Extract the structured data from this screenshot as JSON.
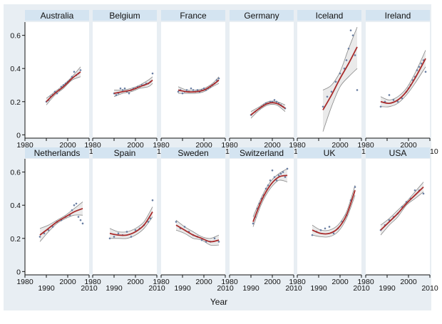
{
  "figure": {
    "xlabel": "Year",
    "colors": {
      "background": "#e8eef3",
      "plot_bg": "#ffffff",
      "strip_bg": "#d4e4f1",
      "fit_line": "#a82a2a",
      "ci_band": "#d9d9d9",
      "ci_line": "#8a8a8a",
      "points": "#6a7fa3",
      "axis": "#111111"
    }
  },
  "chart_data": [
    {
      "type": "scatter",
      "title": "Australia",
      "xlim": [
        1980,
        2010
      ],
      "ylim": [
        -0.02,
        0.68
      ],
      "xticks": [
        1980,
        1990,
        2000,
        2010
      ],
      "yticks": [
        0,
        0.2,
        0.4,
        0.6
      ],
      "points": {
        "x": [
          1990,
          1991,
          1992,
          1993,
          1994,
          1995,
          1996,
          1997,
          1998,
          1999,
          2000,
          2001,
          2002,
          2003,
          2004,
          2005,
          2006
        ],
        "y": [
          0.2,
          0.21,
          0.23,
          0.24,
          0.26,
          0.25,
          0.27,
          0.29,
          0.3,
          0.31,
          0.32,
          0.33,
          0.35,
          0.38,
          0.36,
          0.37,
          0.39
        ]
      },
      "fit": {
        "x": [
          1990,
          1994,
          1998,
          2002,
          2006
        ],
        "y": [
          0.2,
          0.25,
          0.29,
          0.34,
          0.38
        ]
      },
      "ci_upper": [
        0.22,
        0.26,
        0.3,
        0.35,
        0.41
      ],
      "ci_lower": [
        0.18,
        0.24,
        0.28,
        0.33,
        0.35
      ]
    },
    {
      "type": "scatter",
      "title": "Belgium",
      "xlim": [
        1980,
        2010
      ],
      "ylim": [
        -0.02,
        0.68
      ],
      "xticks": [
        1980,
        1990,
        2000,
        2010
      ],
      "yticks": [
        0,
        0.2,
        0.4,
        0.6
      ],
      "points": {
        "x": [
          1990,
          1991,
          1992,
          1993,
          1994,
          1995,
          1996,
          1997,
          1998,
          1999,
          2000,
          2001,
          2002,
          2003,
          2004,
          2005,
          2006,
          2007,
          2008
        ],
        "y": [
          0.25,
          0.24,
          0.25,
          0.28,
          0.27,
          0.28,
          0.26,
          0.25,
          0.27,
          0.28,
          0.28,
          0.29,
          0.29,
          0.3,
          0.3,
          0.31,
          0.31,
          0.32,
          0.37
        ]
      },
      "fit": {
        "x": [
          1990,
          1994,
          1998,
          2002,
          2006,
          2008
        ],
        "y": [
          0.25,
          0.26,
          0.27,
          0.29,
          0.31,
          0.33
        ]
      },
      "ci_upper": [
        0.27,
        0.27,
        0.28,
        0.3,
        0.33,
        0.35
      ],
      "ci_lower": [
        0.23,
        0.25,
        0.26,
        0.28,
        0.29,
        0.31
      ]
    },
    {
      "type": "scatter",
      "title": "France",
      "xlim": [
        1980,
        2010
      ],
      "ylim": [
        -0.02,
        0.68
      ],
      "xticks": [
        1980,
        1990,
        2000,
        2010
      ],
      "yticks": [
        0,
        0.2,
        0.4,
        0.6
      ],
      "points": {
        "x": [
          1988,
          1989,
          1990,
          1991,
          1992,
          1993,
          1994,
          1995,
          1996,
          1997,
          1998,
          1999,
          2000,
          2001,
          2002,
          2003,
          2004,
          2005,
          2006,
          2007
        ],
        "y": [
          0.26,
          0.27,
          0.25,
          0.26,
          0.27,
          0.26,
          0.28,
          0.27,
          0.26,
          0.27,
          0.26,
          0.27,
          0.28,
          0.27,
          0.28,
          0.29,
          0.3,
          0.31,
          0.33,
          0.34
        ]
      },
      "fit": {
        "x": [
          1988,
          1992,
          1996,
          2000,
          2004,
          2007
        ],
        "y": [
          0.27,
          0.26,
          0.26,
          0.27,
          0.3,
          0.33
        ]
      },
      "ci_upper": [
        0.29,
        0.27,
        0.27,
        0.28,
        0.31,
        0.35
      ],
      "ci_lower": [
        0.25,
        0.25,
        0.25,
        0.26,
        0.29,
        0.31
      ]
    },
    {
      "type": "scatter",
      "title": "Germany",
      "xlim": [
        1980,
        2010
      ],
      "ylim": [
        -0.02,
        0.68
      ],
      "xticks": [
        1980,
        1990,
        2000,
        2010
      ],
      "yticks": [
        0,
        0.2,
        0.4,
        0.6
      ],
      "points": {
        "x": [
          1990,
          1992,
          1994,
          1995,
          1996,
          1997,
          1998,
          1999,
          2000,
          2001,
          2002,
          2003,
          2004,
          2005,
          2006
        ],
        "y": [
          0.12,
          0.14,
          0.16,
          0.17,
          0.18,
          0.19,
          0.19,
          0.2,
          0.2,
          0.21,
          0.2,
          0.19,
          0.18,
          0.17,
          0.16
        ]
      },
      "fit": {
        "x": [
          1990,
          1994,
          1998,
          2002,
          2006
        ],
        "y": [
          0.12,
          0.16,
          0.19,
          0.19,
          0.16
        ]
      },
      "ci_upper": [
        0.14,
        0.17,
        0.2,
        0.2,
        0.18
      ],
      "ci_lower": [
        0.1,
        0.15,
        0.18,
        0.18,
        0.14
      ]
    },
    {
      "type": "scatter",
      "title": "Iceland",
      "xlim": [
        1980,
        2010
      ],
      "ylim": [
        -0.02,
        0.68
      ],
      "xticks": [
        1980,
        1990,
        2000,
        2010
      ],
      "yticks": [
        0,
        0.2,
        0.4,
        0.6
      ],
      "points": {
        "x": [
          1992,
          1994,
          1996,
          1998,
          2000,
          2002,
          2003,
          2004,
          2005,
          2006,
          2007,
          2008
        ],
        "y": [
          0.17,
          0.23,
          0.26,
          0.32,
          0.37,
          0.4,
          0.45,
          0.52,
          0.63,
          0.6,
          0.48,
          0.27
        ]
      },
      "fit": {
        "x": [
          1992,
          1996,
          2000,
          2004,
          2008
        ],
        "y": [
          0.15,
          0.24,
          0.34,
          0.43,
          0.53
        ]
      },
      "ci_upper": [
        0.27,
        0.3,
        0.38,
        0.52,
        0.65
      ],
      "ci_lower": [
        0.02,
        0.17,
        0.29,
        0.35,
        0.4
      ]
    },
    {
      "type": "scatter",
      "title": "Ireland",
      "xlim": [
        1980,
        2010
      ],
      "ylim": [
        -0.02,
        0.68
      ],
      "xticks": [
        1980,
        1990,
        2000,
        2010
      ],
      "yticks": [
        0,
        0.2,
        0.4,
        0.6
      ],
      "points": {
        "x": [
          1987,
          1989,
          1991,
          1993,
          1995,
          1997,
          1999,
          2000,
          2001,
          2002,
          2003,
          2004,
          2005,
          2006,
          2007,
          2008
        ],
        "y": [
          0.17,
          0.2,
          0.24,
          0.21,
          0.2,
          0.22,
          0.26,
          0.28,
          0.3,
          0.33,
          0.35,
          0.39,
          0.41,
          0.43,
          0.45,
          0.38
        ]
      },
      "fit": {
        "x": [
          1987,
          1991,
          1995,
          1999,
          2003,
          2008
        ],
        "y": [
          0.2,
          0.19,
          0.21,
          0.26,
          0.34,
          0.46
        ]
      },
      "ci_upper": [
        0.23,
        0.21,
        0.23,
        0.28,
        0.37,
        0.51
      ],
      "ci_lower": [
        0.17,
        0.17,
        0.19,
        0.24,
        0.31,
        0.41
      ]
    },
    {
      "type": "scatter",
      "title": "Netherlands",
      "xlim": [
        1980,
        2010
      ],
      "ylim": [
        -0.02,
        0.68
      ],
      "xticks": [
        1980,
        1990,
        2000,
        2010
      ],
      "yticks": [
        0,
        0.2,
        0.4,
        0.6
      ],
      "points": {
        "x": [
          1987,
          1989,
          1991,
          1993,
          1995,
          1997,
          1999,
          2001,
          2002,
          2003,
          2004,
          2005,
          2006,
          2007
        ],
        "y": [
          0.21,
          0.23,
          0.25,
          0.27,
          0.3,
          0.31,
          0.33,
          0.34,
          0.37,
          0.4,
          0.41,
          0.33,
          0.31,
          0.29
        ]
      },
      "fit": {
        "x": [
          1987,
          1991,
          1995,
          1999,
          2003,
          2007
        ],
        "y": [
          0.22,
          0.26,
          0.3,
          0.33,
          0.36,
          0.38
        ]
      },
      "ci_upper": [
        0.26,
        0.28,
        0.31,
        0.34,
        0.38,
        0.42
      ],
      "ci_lower": [
        0.18,
        0.24,
        0.29,
        0.32,
        0.34,
        0.34
      ]
    },
    {
      "type": "scatter",
      "title": "Spain",
      "xlim": [
        1980,
        2010
      ],
      "ylim": [
        -0.02,
        0.68
      ],
      "xticks": [
        1980,
        1990,
        2000,
        2010
      ],
      "yticks": [
        0,
        0.2,
        0.4,
        0.6
      ],
      "points": {
        "x": [
          1988,
          1990,
          1992,
          1994,
          1996,
          1998,
          2000,
          2002,
          2004,
          2006,
          2007,
          2008
        ],
        "y": [
          0.2,
          0.21,
          0.23,
          0.22,
          0.24,
          0.21,
          0.25,
          0.26,
          0.28,
          0.3,
          0.32,
          0.43
        ]
      },
      "fit": {
        "x": [
          1988,
          1992,
          1996,
          2000,
          2004,
          2008
        ],
        "y": [
          0.23,
          0.22,
          0.22,
          0.24,
          0.28,
          0.36
        ]
      },
      "ci_upper": [
        0.26,
        0.24,
        0.24,
        0.26,
        0.3,
        0.39
      ],
      "ci_lower": [
        0.2,
        0.2,
        0.2,
        0.22,
        0.26,
        0.33
      ]
    },
    {
      "type": "scatter",
      "title": "Sweden",
      "xlim": [
        1980,
        2010
      ],
      "ylim": [
        -0.02,
        0.68
      ],
      "xticks": [
        1980,
        1990,
        2000,
        2010
      ],
      "yticks": [
        0,
        0.2,
        0.4,
        0.6
      ],
      "points": {
        "x": [
          1987,
          1989,
          1991,
          1993,
          1995,
          1997,
          1999,
          2001,
          2003,
          2005,
          2007
        ],
        "y": [
          0.3,
          0.26,
          0.27,
          0.24,
          0.22,
          0.21,
          0.19,
          0.18,
          0.18,
          0.2,
          0.18
        ]
      },
      "fit": {
        "x": [
          1987,
          1991,
          1995,
          1999,
          2003,
          2007
        ],
        "y": [
          0.28,
          0.25,
          0.22,
          0.2,
          0.18,
          0.19
        ]
      },
      "ci_upper": [
        0.31,
        0.27,
        0.24,
        0.21,
        0.2,
        0.22
      ],
      "ci_lower": [
        0.25,
        0.23,
        0.2,
        0.19,
        0.16,
        0.16
      ]
    },
    {
      "type": "scatter",
      "title": "Switzerland",
      "xlim": [
        1980,
        2010
      ],
      "ylim": [
        -0.02,
        0.68
      ],
      "xticks": [
        1980,
        1990,
        2000,
        2010
      ],
      "yticks": [
        0,
        0.2,
        0.4,
        0.6
      ],
      "points": {
        "x": [
          1991,
          1992,
          1993,
          1994,
          1995,
          1996,
          1997,
          1998,
          1999,
          2000,
          2001,
          2002,
          2003,
          2004,
          2005,
          2006,
          2007
        ],
        "y": [
          0.29,
          0.33,
          0.38,
          0.41,
          0.44,
          0.46,
          0.5,
          0.52,
          0.55,
          0.61,
          0.57,
          0.55,
          0.58,
          0.59,
          0.6,
          0.57,
          0.62
        ]
      },
      "fit": {
        "x": [
          1991,
          1995,
          1999,
          2003,
          2007
        ],
        "y": [
          0.3,
          0.43,
          0.52,
          0.57,
          0.58
        ]
      },
      "ci_upper": [
        0.33,
        0.45,
        0.54,
        0.59,
        0.62
      ],
      "ci_lower": [
        0.27,
        0.41,
        0.5,
        0.55,
        0.54
      ]
    },
    {
      "type": "scatter",
      "title": "UK",
      "xlim": [
        1980,
        2010
      ],
      "ylim": [
        -0.02,
        0.68
      ],
      "xticks": [
        1980,
        1990,
        2000,
        2010
      ],
      "yticks": [
        0,
        0.2,
        0.4,
        0.6
      ],
      "points": {
        "x": [
          1987,
          1989,
          1991,
          1993,
          1995,
          1997,
          1999,
          2001,
          2003,
          2005,
          2007
        ],
        "y": [
          0.22,
          0.24,
          0.25,
          0.26,
          0.27,
          0.23,
          0.26,
          0.3,
          0.34,
          0.43,
          0.51
        ]
      },
      "fit": {
        "x": [
          1987,
          1991,
          1995,
          1999,
          2003,
          2007
        ],
        "y": [
          0.25,
          0.23,
          0.23,
          0.26,
          0.34,
          0.49
        ]
      },
      "ci_upper": [
        0.28,
        0.25,
        0.25,
        0.28,
        0.36,
        0.52
      ],
      "ci_lower": [
        0.22,
        0.21,
        0.21,
        0.24,
        0.32,
        0.46
      ]
    },
    {
      "type": "scatter",
      "title": "USA",
      "xlim": [
        1980,
        2010
      ],
      "ylim": [
        -0.02,
        0.68
      ],
      "xticks": [
        1980,
        1990,
        2000,
        2010
      ],
      "yticks": [
        0,
        0.2,
        0.4,
        0.6
      ],
      "points": {
        "x": [
          1987,
          1989,
          1991,
          1993,
          1995,
          1997,
          1999,
          2001,
          2003,
          2005,
          2007
        ],
        "y": [
          0.25,
          0.28,
          0.31,
          0.33,
          0.35,
          0.39,
          0.42,
          0.44,
          0.49,
          0.49,
          0.47
        ]
      },
      "fit": {
        "x": [
          1987,
          1991,
          1995,
          1999,
          2003,
          2007
        ],
        "y": [
          0.25,
          0.3,
          0.35,
          0.41,
          0.46,
          0.51
        ]
      },
      "ci_upper": [
        0.28,
        0.32,
        0.37,
        0.42,
        0.48,
        0.54
      ],
      "ci_lower": [
        0.22,
        0.28,
        0.33,
        0.4,
        0.44,
        0.48
      ]
    }
  ]
}
